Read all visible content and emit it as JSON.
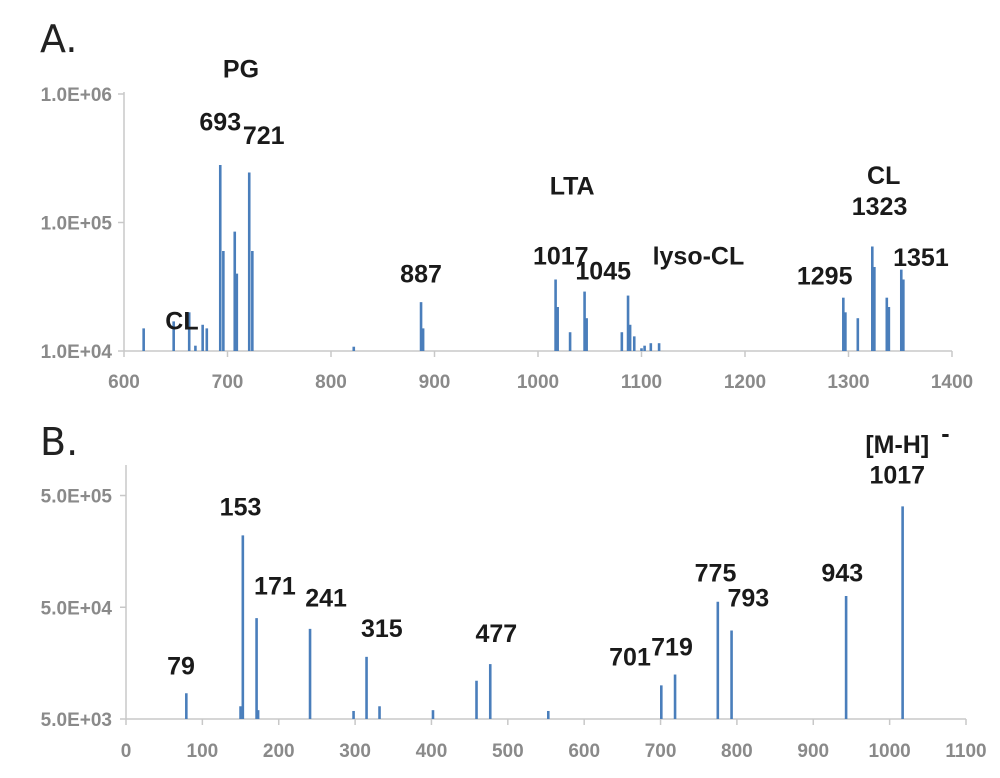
{
  "chart_data": [
    {
      "panel_label": "A.",
      "type": "bar",
      "y_scale": "log",
      "ylim": [
        10000,
        1000000
      ],
      "xlim": [
        600,
        1400
      ],
      "color": "#4a7ebb",
      "x_ticks": [
        "600",
        "700",
        "800",
        "900",
        "1000",
        "1100",
        "1200",
        "1300",
        "1400"
      ],
      "y_ticks": [
        {
          "value": 10000,
          "label": "1.0E+04"
        },
        {
          "value": 100000,
          "label": "1.0E+05"
        },
        {
          "value": 1000000,
          "label": "1.0E+06"
        }
      ],
      "peaks": [
        {
          "x": 619,
          "y": 15000
        },
        {
          "x": 648,
          "y": 17000
        },
        {
          "x": 663,
          "y": 20000
        },
        {
          "x": 669,
          "y": 11000
        },
        {
          "x": 676,
          "y": 16000
        },
        {
          "x": 680,
          "y": 15000
        },
        {
          "x": 693,
          "y": 280000
        },
        {
          "x": 696,
          "y": 60000
        },
        {
          "x": 707,
          "y": 85000
        },
        {
          "x": 709,
          "y": 40000
        },
        {
          "x": 721,
          "y": 245000
        },
        {
          "x": 724,
          "y": 60000
        },
        {
          "x": 822,
          "y": 10800
        },
        {
          "x": 887,
          "y": 24000
        },
        {
          "x": 889,
          "y": 15000
        },
        {
          "x": 1017,
          "y": 36000
        },
        {
          "x": 1019,
          "y": 22000
        },
        {
          "x": 1031,
          "y": 14000
        },
        {
          "x": 1045,
          "y": 29000
        },
        {
          "x": 1047,
          "y": 18000
        },
        {
          "x": 1081,
          "y": 14000
        },
        {
          "x": 1087,
          "y": 27000
        },
        {
          "x": 1089,
          "y": 16000
        },
        {
          "x": 1093,
          "y": 13000
        },
        {
          "x": 1100,
          "y": 10500
        },
        {
          "x": 1103,
          "y": 11000
        },
        {
          "x": 1109,
          "y": 11500
        },
        {
          "x": 1117,
          "y": 11500
        },
        {
          "x": 1295,
          "y": 26000
        },
        {
          "x": 1297,
          "y": 20000
        },
        {
          "x": 1309,
          "y": 18000
        },
        {
          "x": 1323,
          "y": 65000
        },
        {
          "x": 1325,
          "y": 45000
        },
        {
          "x": 1337,
          "y": 26000
        },
        {
          "x": 1339,
          "y": 22000
        },
        {
          "x": 1351,
          "y": 43000
        },
        {
          "x": 1353,
          "y": 36000
        }
      ],
      "annotations": [
        {
          "text": "PG",
          "x": 713,
          "y": 1350000
        },
        {
          "text": "693",
          "x": 693,
          "y": 520000
        },
        {
          "text": "721",
          "x": 735,
          "y": 410000
        },
        {
          "text": "CL",
          "x": 656,
          "y": 14700
        },
        {
          "text": "887",
          "x": 887,
          "y": 34000
        },
        {
          "text": "LTA",
          "x": 1033,
          "y": 165000
        },
        {
          "text": "1017",
          "x": 1022,
          "y": 47000
        },
        {
          "text": "1045",
          "x": 1063,
          "y": 36000
        },
        {
          "text": "lyso-CL",
          "x": 1155,
          "y": 47000
        },
        {
          "text": "CL",
          "x": 1334,
          "y": 200000
        },
        {
          "text": "1323",
          "x": 1330,
          "y": 114000
        },
        {
          "text": "1351",
          "x": 1370,
          "y": 46000
        },
        {
          "text": "1295",
          "x": 1277,
          "y": 33000
        }
      ]
    },
    {
      "panel_label": "B.",
      "type": "bar",
      "y_scale": "log",
      "ylim": [
        5000,
        900000
      ],
      "xlim": [
        0,
        1100
      ],
      "color": "#4a7ebb",
      "x_ticks": [
        "0",
        "100",
        "200",
        "300",
        "400",
        "500",
        "600",
        "700",
        "800",
        "900",
        "1000",
        "1100"
      ],
      "y_ticks": [
        {
          "value": 5000,
          "label": "5.0E+03"
        },
        {
          "value": 50000,
          "label": "5.0E+04"
        },
        {
          "value": 500000,
          "label": "5.0E+05"
        }
      ],
      "peaks": [
        {
          "x": 79,
          "y": 8500
        },
        {
          "x": 150,
          "y": 6500
        },
        {
          "x": 153,
          "y": 220000
        },
        {
          "x": 171,
          "y": 40000
        },
        {
          "x": 173,
          "y": 6000
        },
        {
          "x": 241,
          "y": 32000
        },
        {
          "x": 298,
          "y": 5900
        },
        {
          "x": 315,
          "y": 18000
        },
        {
          "x": 332,
          "y": 6500
        },
        {
          "x": 402,
          "y": 6000
        },
        {
          "x": 459,
          "y": 11000
        },
        {
          "x": 477,
          "y": 15500
        },
        {
          "x": 553,
          "y": 5900
        },
        {
          "x": 701,
          "y": 10000
        },
        {
          "x": 719,
          "y": 12500
        },
        {
          "x": 775,
          "y": 56000
        },
        {
          "x": 793,
          "y": 31000
        },
        {
          "x": 943,
          "y": 63000
        },
        {
          "x": 1017,
          "y": 400000
        }
      ],
      "annotations": [
        {
          "text": "79",
          "x": 72,
          "y": 12500
        },
        {
          "text": "153",
          "x": 150,
          "y": 330000
        },
        {
          "text": "171",
          "x": 195,
          "y": 65000
        },
        {
          "text": "241",
          "x": 262,
          "y": 51000
        },
        {
          "text": "315",
          "x": 335,
          "y": 27000
        },
        {
          "text": "477",
          "x": 485,
          "y": 24500
        },
        {
          "text": "701",
          "x": 660,
          "y": 15000
        },
        {
          "text": "719",
          "x": 715,
          "y": 18500
        },
        {
          "text": "775",
          "x": 772,
          "y": 85000
        },
        {
          "text": "793",
          "x": 815,
          "y": 51000
        },
        {
          "text": "943",
          "x": 938,
          "y": 85000
        },
        {
          "text": "[M-H]",
          "x": 1010,
          "y": 1200000,
          "sup": "-"
        },
        {
          "text": "1017",
          "x": 1010,
          "y": 640000
        }
      ]
    }
  ]
}
